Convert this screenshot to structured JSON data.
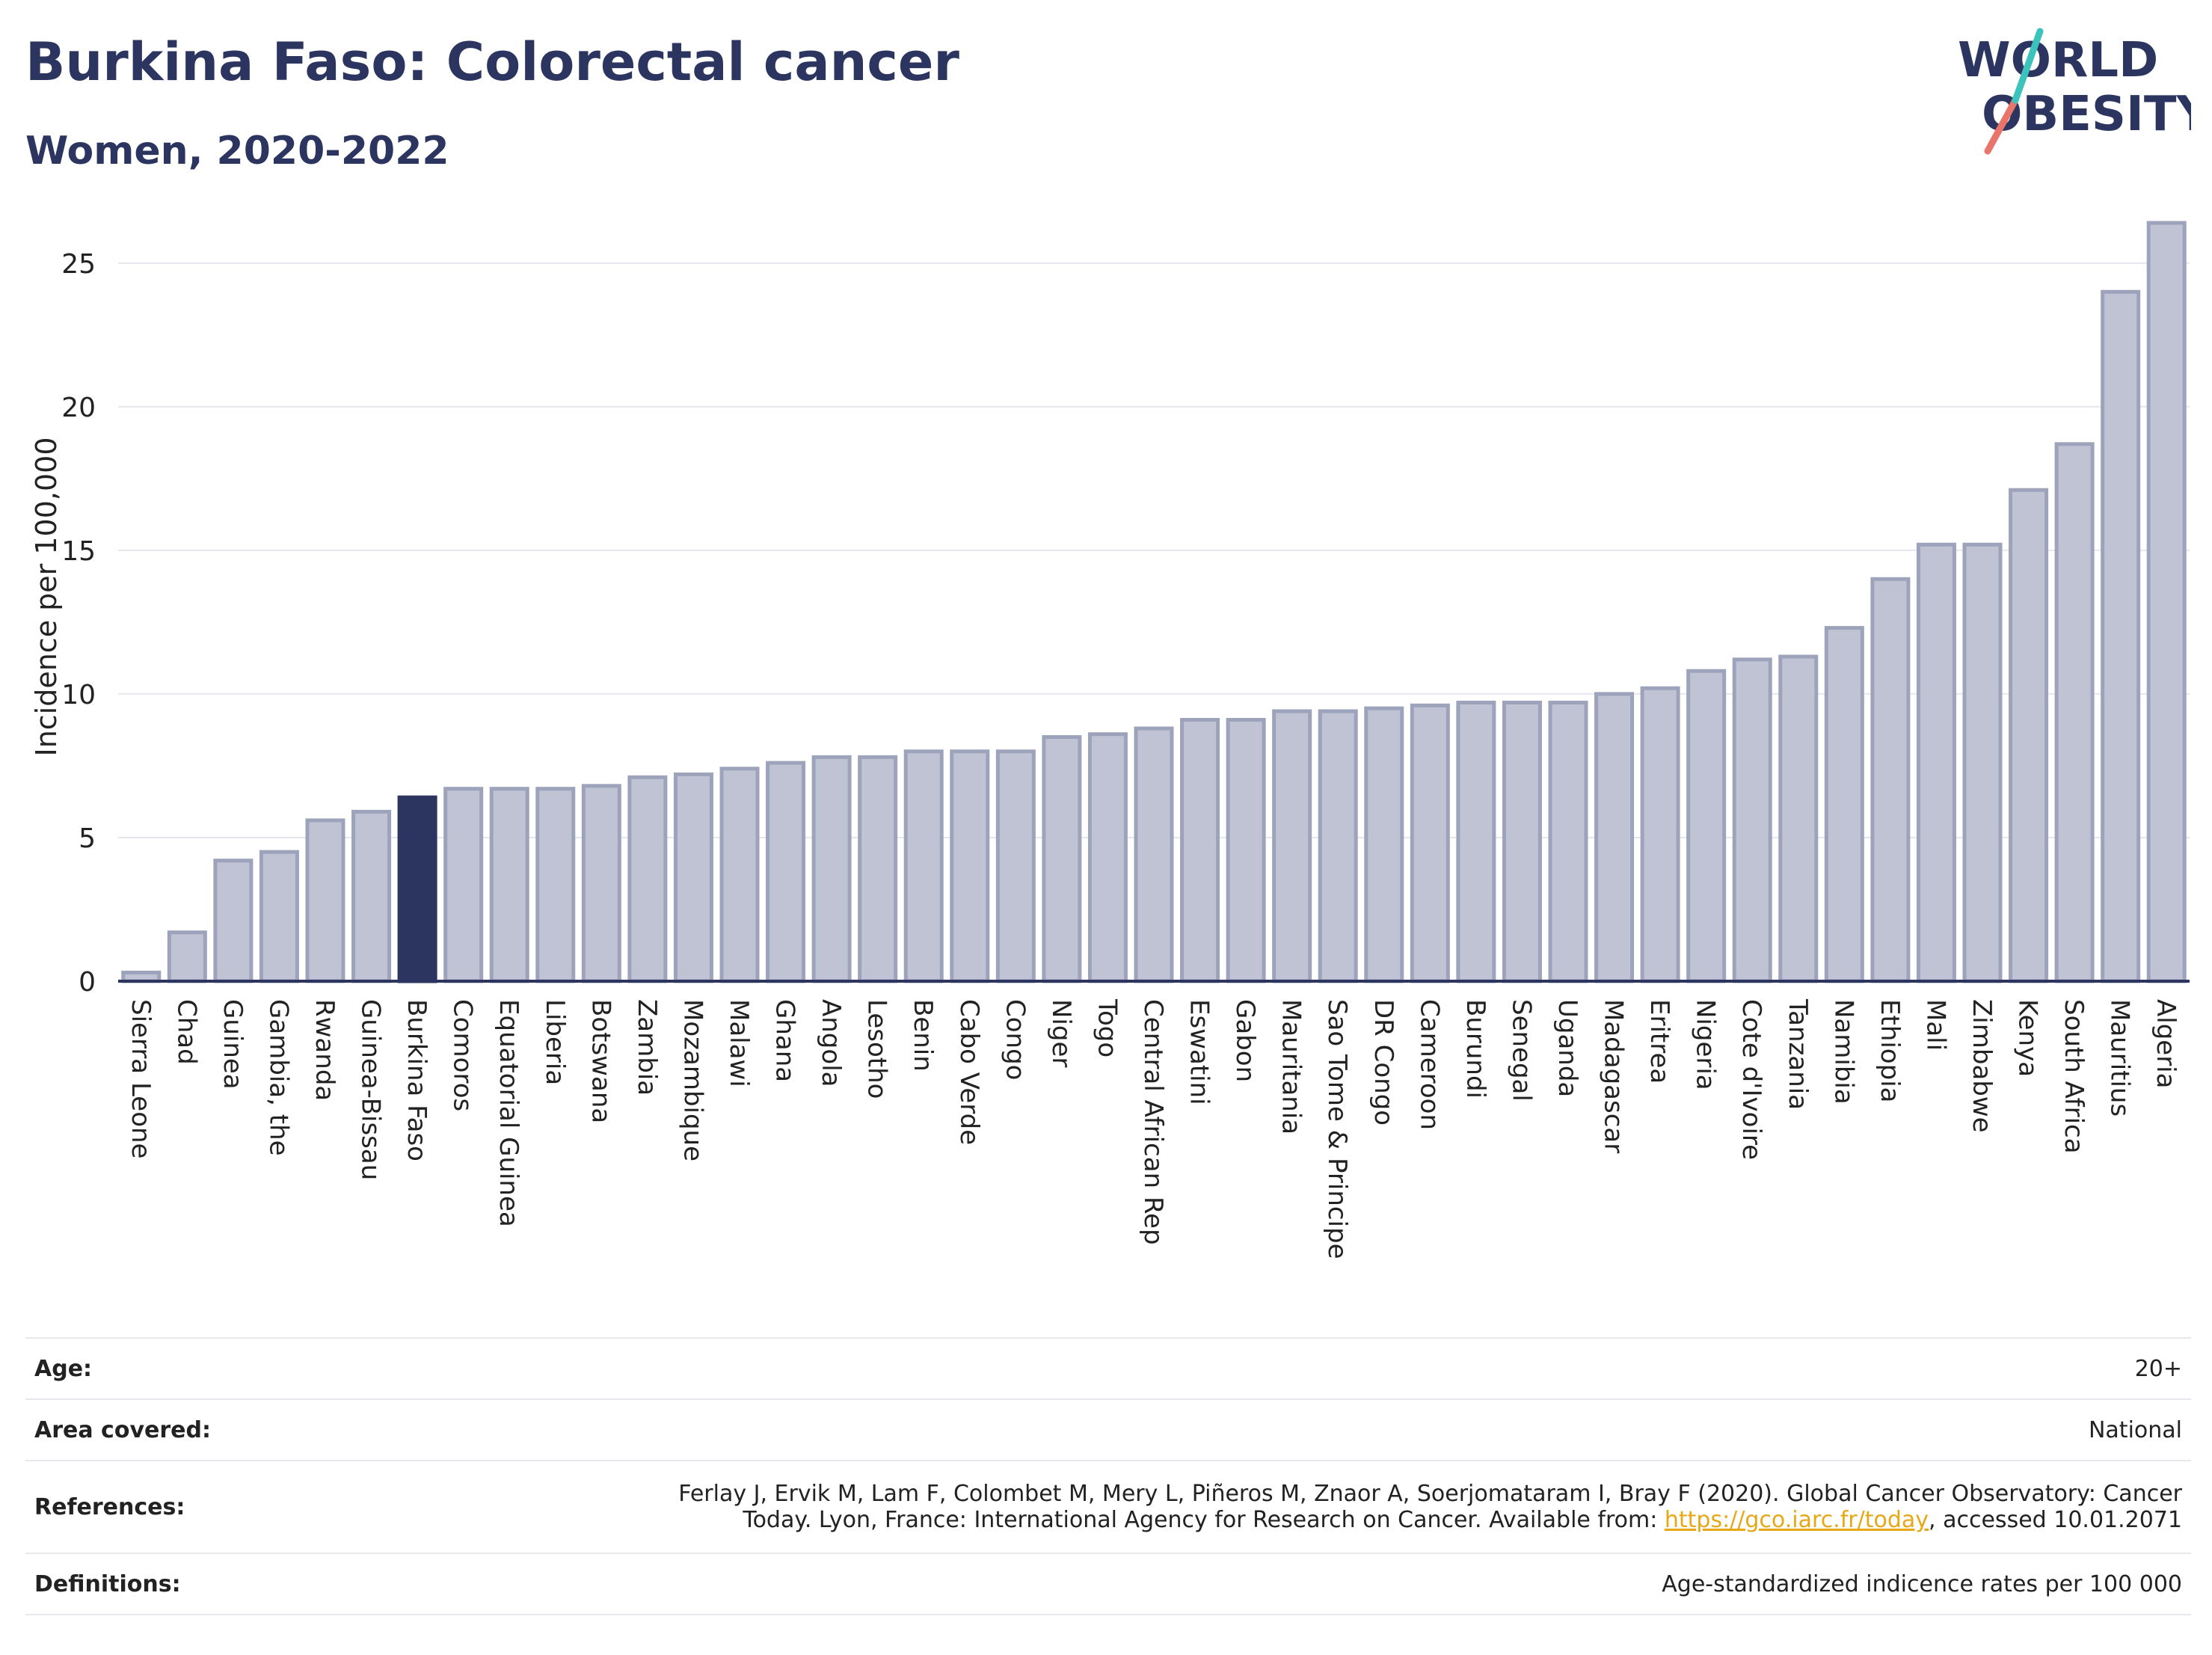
{
  "header": {
    "title": "Burkina Faso: Colorectal cancer",
    "subtitle": "Women, 2020-2022"
  },
  "logo": {
    "line1": "WORLD",
    "line2": "OBESITY",
    "colors": {
      "text": "#2b3560",
      "slash_teal": "#3cc4bc",
      "slash_coral": "#e8746a"
    }
  },
  "colors": {
    "bar": "#bfc3d3",
    "bar_stroke": "#9da3bb",
    "highlight": "#2b3560",
    "grid": "#e6e7ee",
    "axis": "#2b3560"
  },
  "chart_data": {
    "type": "bar",
    "ylabel": "Incidence per 100,000",
    "ylim": [
      0,
      27
    ],
    "yticks": [
      0,
      5,
      10,
      15,
      20,
      25
    ],
    "grid": true,
    "highlight": "Burkina Faso",
    "categories": [
      "Sierra Leone",
      "Chad",
      "Guinea",
      "Gambia, the",
      "Rwanda",
      "Guinea-Bissau",
      "Burkina Faso",
      "Comoros",
      "Equatorial Guinea",
      "Liberia",
      "Botswana",
      "Zambia",
      "Mozambique",
      "Malawi",
      "Ghana",
      "Angola",
      "Lesotho",
      "Benin",
      "Cabo Verde",
      "Congo",
      "Niger",
      "Togo",
      "Central African Rep",
      "Eswatini",
      "Gabon",
      "Mauritania",
      "Sao Tome & Principe",
      "DR Congo",
      "Cameroon",
      "Burundi",
      "Senegal",
      "Uganda",
      "Madagascar",
      "Eritrea",
      "Nigeria",
      "Cote d'Ivoire",
      "Tanzania",
      "Namibia",
      "Ethiopia",
      "Mali",
      "Zimbabwe",
      "Kenya",
      "South Africa",
      "Mauritius",
      "Algeria"
    ],
    "values": [
      0.3,
      1.7,
      4.2,
      4.5,
      5.6,
      5.9,
      6.4,
      6.7,
      6.7,
      6.7,
      6.8,
      7.1,
      7.2,
      7.4,
      7.6,
      7.8,
      7.8,
      8.0,
      8.0,
      8.0,
      8.5,
      8.6,
      8.8,
      9.1,
      9.1,
      9.4,
      9.4,
      9.5,
      9.6,
      9.7,
      9.7,
      9.7,
      10.0,
      10.2,
      10.8,
      11.2,
      11.3,
      12.3,
      14.0,
      15.2,
      15.2,
      17.1,
      18.7,
      24.0,
      26.4
    ]
  },
  "info": {
    "age_label": "Age:",
    "age_value": "20+",
    "area_label": "Area covered:",
    "area_value": "National",
    "references_label": "References:",
    "references_line1": "Ferlay J, Ervik M, Lam F, Colombet M, Mery L, Piñeros M, Znaor A, Soerjomataram I, Bray F (2020). Global Cancer Observatory: Cancer",
    "references_line2_pre": "Today. Lyon, France: International Agency for Research on Cancer. Available from: ",
    "references_link": "https://gco.iarc.fr/today",
    "references_line2_post": ", accessed 10.01.2071",
    "definitions_label": "Definitions:",
    "definitions_value": "Age-standardized indicence rates per 100 000"
  }
}
